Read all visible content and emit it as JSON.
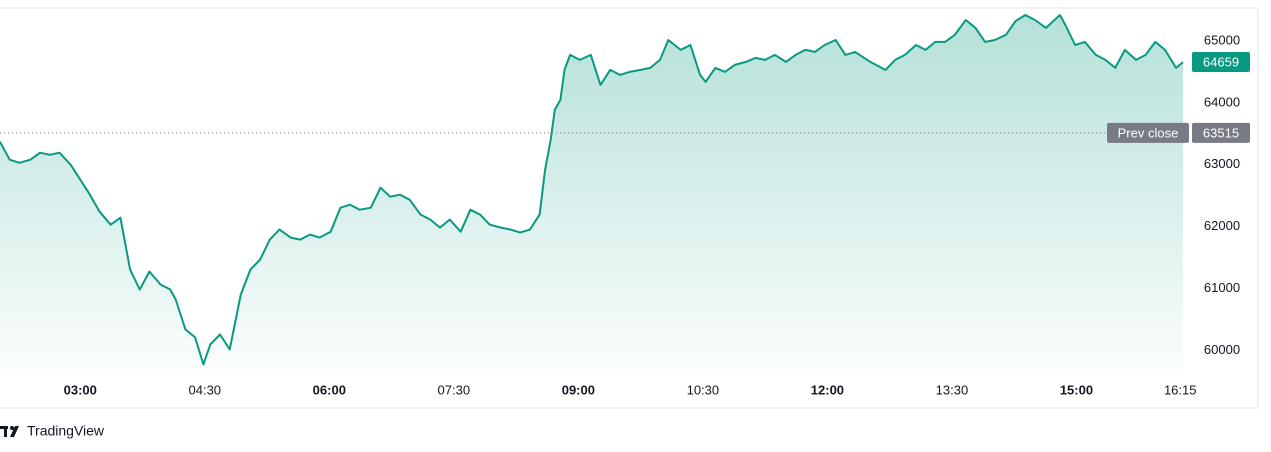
{
  "brand": "TradingView",
  "chart_data": {
    "type": "area",
    "color": "#089981",
    "x": [
      "02:02",
      "02:09",
      "02:16",
      "02:24",
      "02:31",
      "02:38",
      "02:45",
      "02:53",
      "03:00",
      "03:07",
      "03:14",
      "03:22",
      "03:29",
      "03:32",
      "03:36",
      "03:43",
      "03:50",
      "03:58",
      "04:05",
      "04:09",
      "04:16",
      "04:23",
      "04:29",
      "04:34",
      "04:41",
      "04:48",
      "04:56",
      "05:03",
      "05:10",
      "05:17",
      "05:24",
      "05:32",
      "05:39",
      "05:46",
      "05:53",
      "06:01",
      "06:08",
      "06:15",
      "06:22",
      "06:30",
      "06:37",
      "06:44",
      "06:51",
      "06:58",
      "07:06",
      "07:13",
      "07:20",
      "07:27",
      "07:35",
      "07:42",
      "07:49",
      "07:56",
      "08:04",
      "08:11",
      "08:18",
      "08:25",
      "08:32",
      "08:36",
      "08:40",
      "08:43",
      "08:47",
      "08:50",
      "08:54",
      "09:01",
      "09:09",
      "09:16",
      "09:23",
      "09:30",
      "09:37",
      "09:45",
      "09:52",
      "09:59",
      "10:05",
      "10:14",
      "10:21",
      "10:28",
      "10:32",
      "10:39",
      "10:46",
      "10:53",
      "11:01",
      "11:08",
      "11:15",
      "11:22",
      "11:30",
      "11:37",
      "11:44",
      "11:51",
      "11:58",
      "12:06",
      "12:13",
      "12:20",
      "12:31",
      "12:42",
      "12:49",
      "12:56",
      "13:04",
      "13:11",
      "13:18",
      "13:25",
      "13:32",
      "13:40",
      "13:47",
      "13:54",
      "14:01",
      "14:09",
      "14:16",
      "14:23",
      "14:30",
      "14:38",
      "14:48",
      "14:52",
      "14:59",
      "15:06",
      "15:14",
      "15:21",
      "15:28",
      "15:35",
      "15:43",
      "15:50",
      "15:57",
      "16:04",
      "16:12",
      "16:17"
    ],
    "values": [
      63371,
      63081,
      63032,
      63081,
      63194,
      63161,
      63194,
      63000,
      62758,
      62516,
      62242,
      62032,
      62145,
      61790,
      61306,
      60984,
      61274,
      61065,
      60984,
      60823,
      60339,
      60210,
      59774,
      60097,
      60258,
      60016,
      60903,
      61306,
      61468,
      61790,
      61952,
      61823,
      61790,
      61871,
      61823,
      61919,
      62306,
      62355,
      62274,
      62306,
      62629,
      62484,
      62516,
      62435,
      62194,
      62113,
      61984,
      62113,
      61919,
      62274,
      62194,
      62032,
      61984,
      61952,
      61903,
      61952,
      62194,
      62919,
      63403,
      63887,
      64048,
      64532,
      64774,
      64694,
      64774,
      64290,
      64532,
      64452,
      64500,
      64532,
      64564,
      64694,
      65016,
      64855,
      64935,
      64452,
      64339,
      64564,
      64500,
      64613,
      64661,
      64726,
      64694,
      64774,
      64661,
      64774,
      64855,
      64823,
      64935,
      65016,
      64774,
      64823,
      64661,
      64532,
      64694,
      64774,
      64935,
      64855,
      64984,
      64984,
      65097,
      65339,
      65210,
      64984,
      65016,
      65097,
      65323,
      65419,
      65339,
      65210,
      65419,
      65258,
      64935,
      64984,
      64774,
      64694,
      64565,
      64855,
      64694,
      64774,
      64984,
      64855,
      64565,
      64659
    ],
    "xlim": [
      "02:02",
      "16:17"
    ],
    "xticks": [
      "03:00",
      "04:30",
      "06:00",
      "07:30",
      "09:00",
      "10:30",
      "12:00",
      "13:30",
      "15:00",
      "16:15"
    ],
    "ylim": [
      59700,
      65500
    ],
    "yticks": [
      60000,
      61000,
      62000,
      63000,
      64000,
      65000
    ],
    "prev_close": 63515,
    "prev_close_label": "Prev close",
    "prev_close_color": "#787b86"
  }
}
